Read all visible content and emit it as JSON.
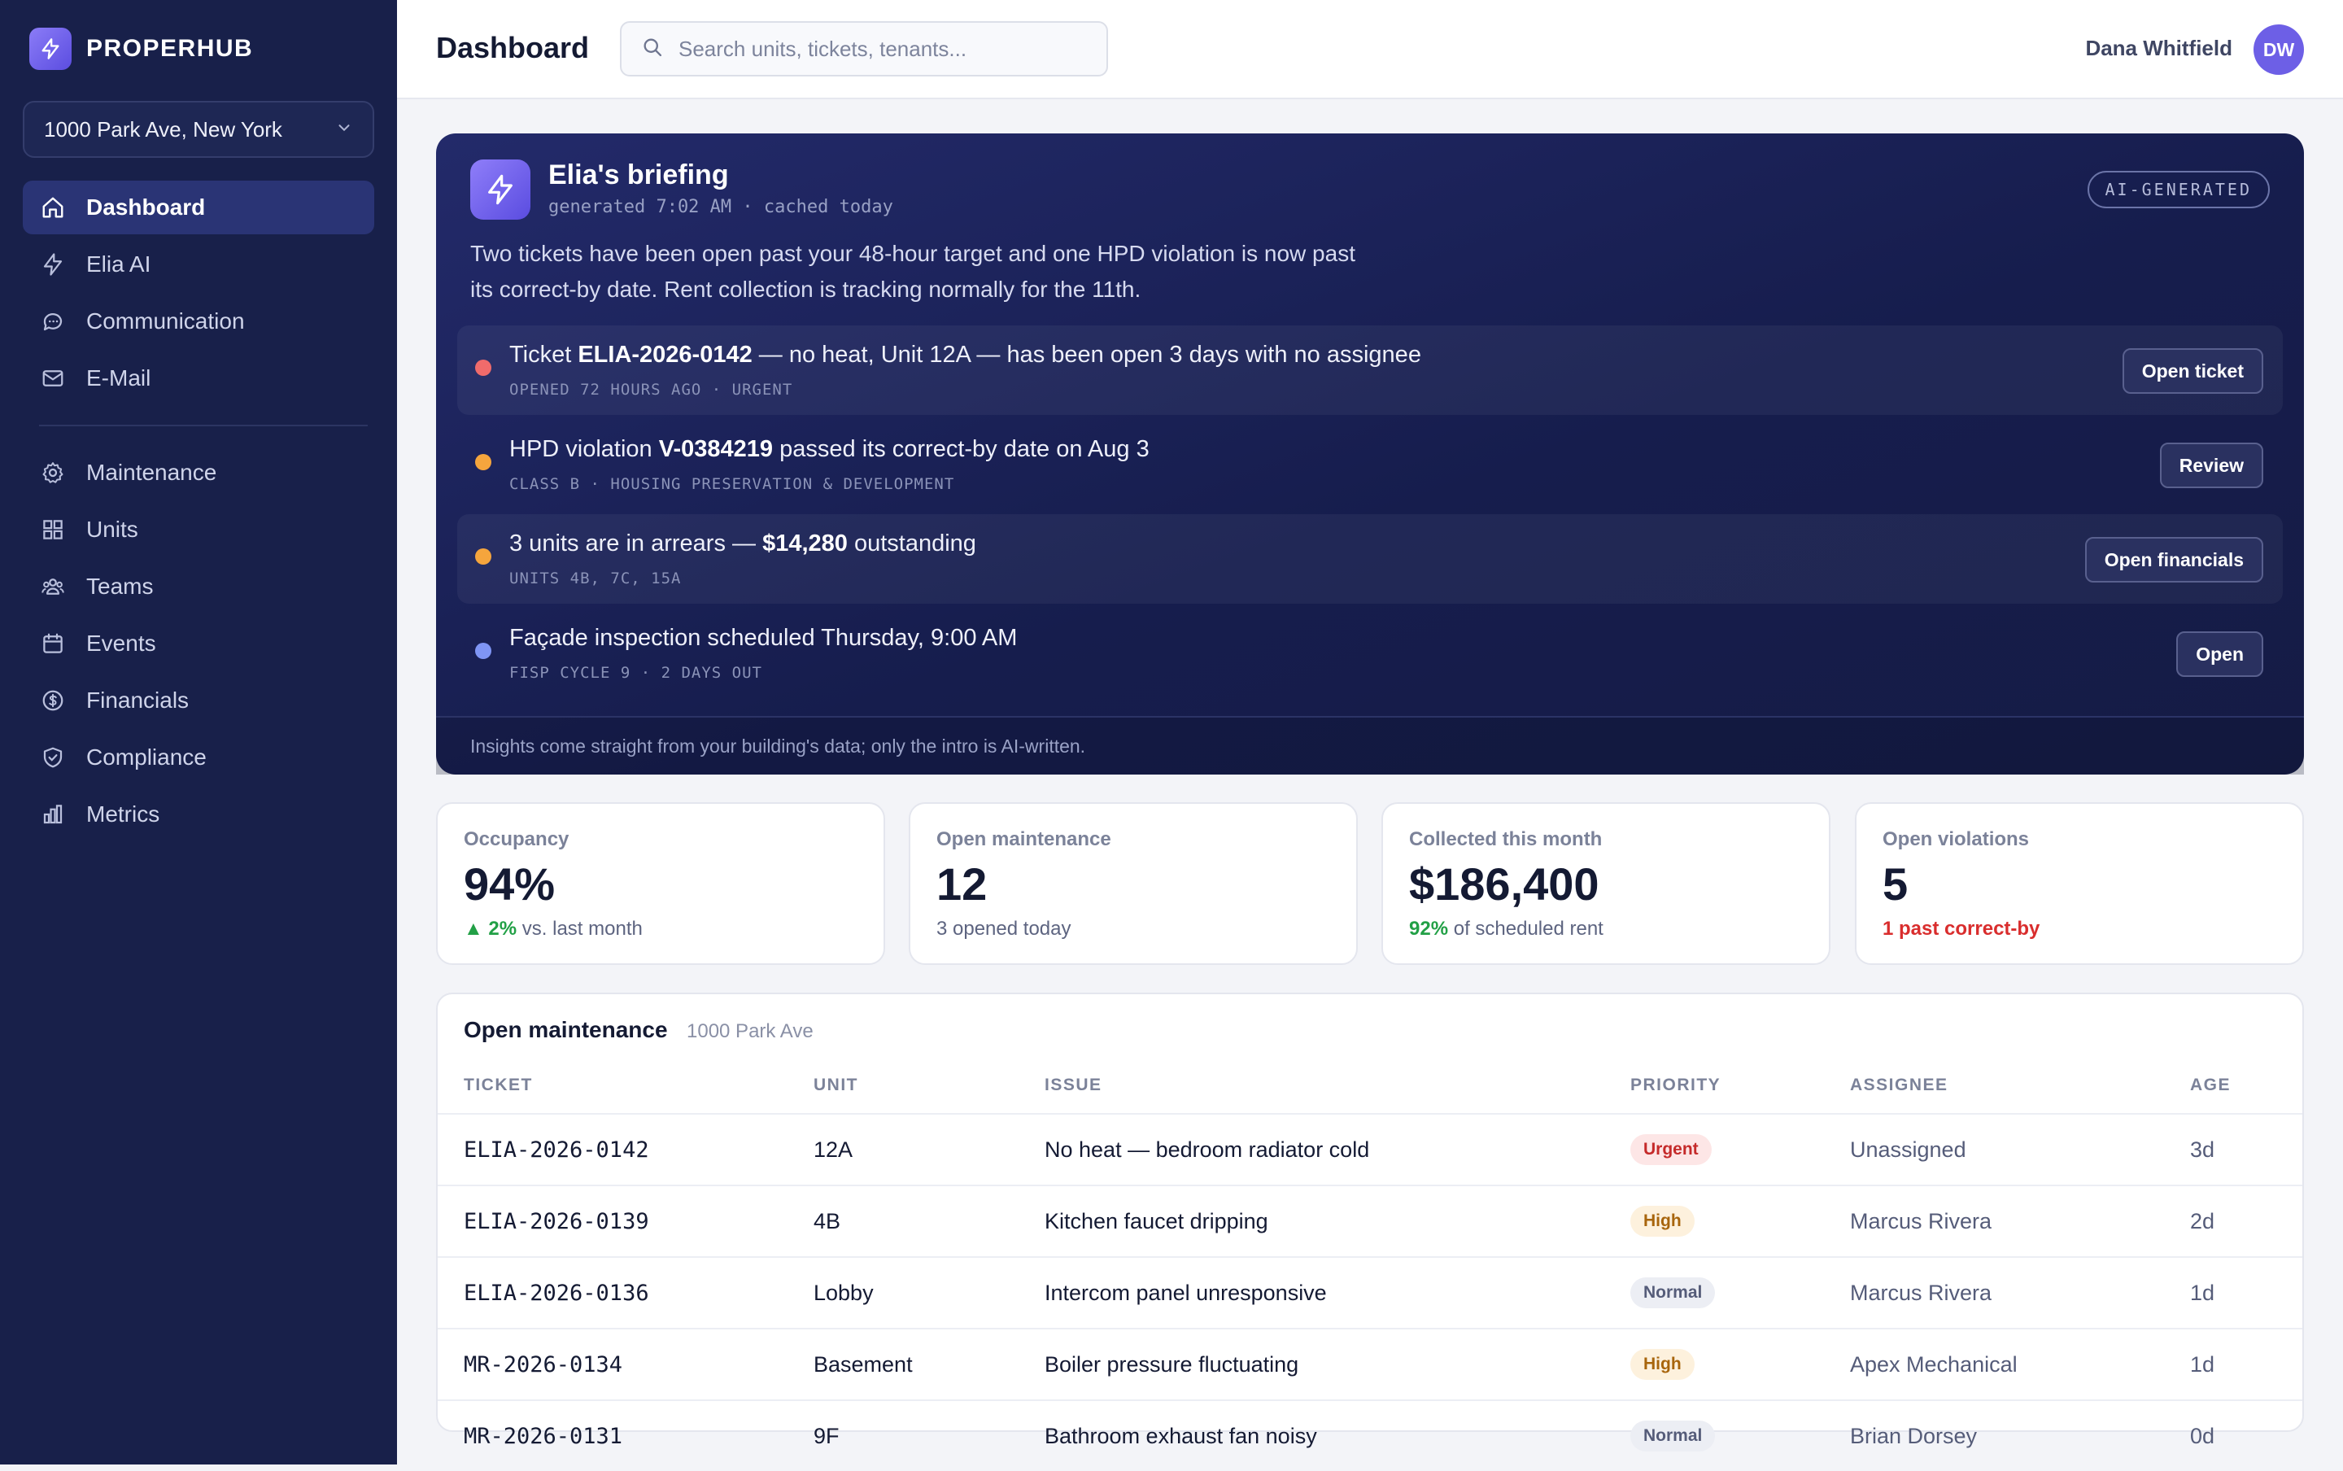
{
  "app": {
    "name": "PROPERHUB"
  },
  "property_selector": {
    "value": "1000 Park Ave, New York"
  },
  "nav": {
    "primary": [
      {
        "label": "Dashboard",
        "icon": "home-icon",
        "active": true
      },
      {
        "label": "Elia AI",
        "icon": "bolt-icon"
      },
      {
        "label": "Communication",
        "icon": "chat-icon"
      },
      {
        "label": "E-Mail",
        "icon": "mail-icon"
      }
    ],
    "secondary": [
      {
        "label": "Maintenance",
        "icon": "gear-icon"
      },
      {
        "label": "Units",
        "icon": "grid-icon"
      },
      {
        "label": "Teams",
        "icon": "team-icon"
      },
      {
        "label": "Events",
        "icon": "calendar-icon"
      },
      {
        "label": "Financials",
        "icon": "dollar-icon"
      },
      {
        "label": "Compliance",
        "icon": "shield-icon"
      },
      {
        "label": "Metrics",
        "icon": "bar-chart-icon"
      }
    ]
  },
  "header": {
    "title": "Dashboard",
    "search_placeholder": "Search units, tickets, tenants...",
    "user_name": "Dana Whitfield",
    "user_initials": "DW"
  },
  "briefing": {
    "title": "Elia's briefing",
    "subtitle": "generated 7:02 AM · cached today",
    "badge": "AI-GENERATED",
    "summary": "Two tickets have been open past your 48-hour target and one HPD violation is now past its correct-by date. Rent collection is tracking normally for the 11th.",
    "footer": "Insights come straight from your building's data; only the intro is AI-written.",
    "insights": [
      {
        "pre": "Ticket ",
        "strong": "ELIA-2026-0142",
        "post": " — no heat, Unit 12A — has been open 3 days with no assignee",
        "meta": "OPENED 72 HOURS AGO · URGENT",
        "action": "Open ticket",
        "color": "#f06b6b"
      },
      {
        "pre": "HPD violation ",
        "strong": "V-0384219",
        "post": " passed its correct-by date on Aug 3",
        "meta": "CLASS B · HOUSING PRESERVATION & DEVELOPMENT",
        "action": "Review",
        "color": "#f5a53d"
      },
      {
        "pre": "3 units are in arrears — ",
        "strong": "$14,280",
        "post": " outstanding",
        "meta": "UNITS 4B, 7C, 15A",
        "action": "Open financials",
        "color": "#f5a53d"
      },
      {
        "pre": "Façade inspection scheduled Thursday, 9:00 AM",
        "strong": "",
        "post": "",
        "meta": "FISP CYCLE 9 · 2 DAYS OUT",
        "action": "Open",
        "color": "#7f95f5"
      }
    ]
  },
  "stats": [
    {
      "label": "Occupancy",
      "value": "94%",
      "note_strong": "▲ 2%",
      "note_rest": " vs. last month",
      "tone": "up"
    },
    {
      "label": "Open maintenance",
      "value": "12",
      "note_strong": "",
      "note_rest": "3 opened today",
      "tone": "neutral"
    },
    {
      "label": "Collected this month",
      "value": "$186,400",
      "note_strong": "92%",
      "note_rest": " of scheduled rent",
      "tone": "up"
    },
    {
      "label": "Open violations",
      "value": "5",
      "note_strong": "1 past correct-by",
      "note_rest": "",
      "tone": "bad"
    }
  ],
  "maintenance_table": {
    "title": "Open maintenance",
    "subtitle": "1000 Park Ave",
    "columns": [
      "TICKET",
      "UNIT",
      "ISSUE",
      "PRIORITY",
      "ASSIGNEE",
      "AGE"
    ],
    "rows": [
      {
        "ticket": "ELIA-2026-0142",
        "unit": "12A",
        "issue": "No heat — bedroom radiator cold",
        "priority": "Urgent",
        "assignee": "Unassigned",
        "age": "3d"
      },
      {
        "ticket": "ELIA-2026-0139",
        "unit": "4B",
        "issue": "Kitchen faucet dripping",
        "priority": "High",
        "assignee": "Marcus Rivera",
        "age": "2d"
      },
      {
        "ticket": "ELIA-2026-0136",
        "unit": "Lobby",
        "issue": "Intercom panel unresponsive",
        "priority": "Normal",
        "assignee": "Marcus Rivera",
        "age": "1d"
      },
      {
        "ticket": "MR-2026-0134",
        "unit": "Basement",
        "issue": "Boiler pressure fluctuating",
        "priority": "High",
        "assignee": "Apex Mechanical",
        "age": "1d"
      },
      {
        "ticket": "MR-2026-0131",
        "unit": "9F",
        "issue": "Bathroom exhaust fan noisy",
        "priority": "Normal",
        "assignee": "Brian Dorsey",
        "age": "0d"
      }
    ]
  }
}
